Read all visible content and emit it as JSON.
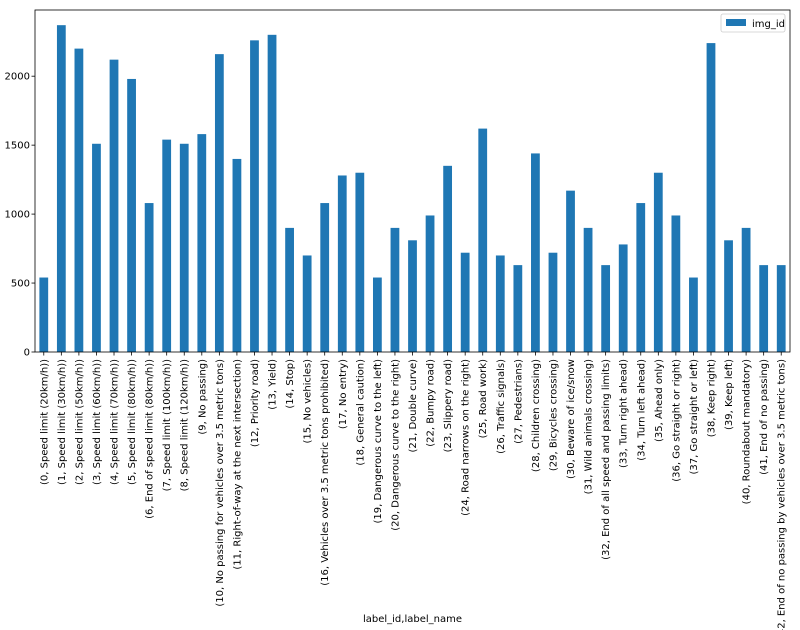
{
  "chart_data": {
    "type": "bar",
    "title": "",
    "xlabel": "label_id,label_name",
    "ylabel": "",
    "ylim": [
      0,
      2480
    ],
    "yticks": [
      0,
      500,
      1000,
      1500,
      2000
    ],
    "grid": false,
    "legend_position": "top-right",
    "colors": {
      "bar": "#1f77b4",
      "axis": "#000000",
      "background": "#ffffff"
    },
    "categories": [
      "(0, Speed limit (20km/h))",
      "(1, Speed limit (30km/h))",
      "(2, Speed limit (50km/h))",
      "(3, Speed limit (60km/h))",
      "(4, Speed limit (70km/h))",
      "(5, Speed limit (80km/h))",
      "(6, End of speed limit (80km/h))",
      "(7, Speed limit (100km/h))",
      "(8, Speed limit (120km/h))",
      "(9, No passing)",
      "(10, No passing for vehicles over 3.5 metric tons)",
      "(11, Right-of-way at the next intersection)",
      "(12, Priority road)",
      "(13, Yield)",
      "(14, Stop)",
      "(15, No vehicles)",
      "(16, Vehicles over 3.5 metric tons prohibited)",
      "(17, No entry)",
      "(18, General caution)",
      "(19, Dangerous curve to the left)",
      "(20, Dangerous curve to the right)",
      "(21, Double curve)",
      "(22, Bumpy road)",
      "(23, Slippery road)",
      "(24, Road narrows on the right)",
      "(25, Road work)",
      "(26, Traffic signals)",
      "(27, Pedestrians)",
      "(28, Children crossing)",
      "(29, Bicycles crossing)",
      "(30, Beware of ice/snow",
      "(31, Wild animals crossing)",
      "(32, End of all speed and passing limits)",
      "(33, Turn right ahead)",
      "(34, Turn left ahead)",
      "(35, Ahead only)",
      "(36, Go straight or right)",
      "(37, Go straight or left)",
      "(38, Keep right)",
      "(39, Keep left)",
      "(40, Roundabout mandatory)",
      "(41, End of no passing)",
      "(42, End of no passing by vehicles over 3.5 metric tons)"
    ],
    "series": [
      {
        "name": "img_id",
        "values": [
          540,
          2370,
          2200,
          1510,
          2120,
          1980,
          1080,
          1540,
          1510,
          1580,
          2160,
          1400,
          2260,
          2300,
          900,
          700,
          1080,
          1280,
          1300,
          540,
          900,
          810,
          990,
          1350,
          720,
          1620,
          700,
          630,
          1440,
          720,
          1170,
          900,
          630,
          780,
          1080,
          1300,
          990,
          540,
          2240,
          810,
          900,
          630,
          630
        ]
      }
    ]
  }
}
